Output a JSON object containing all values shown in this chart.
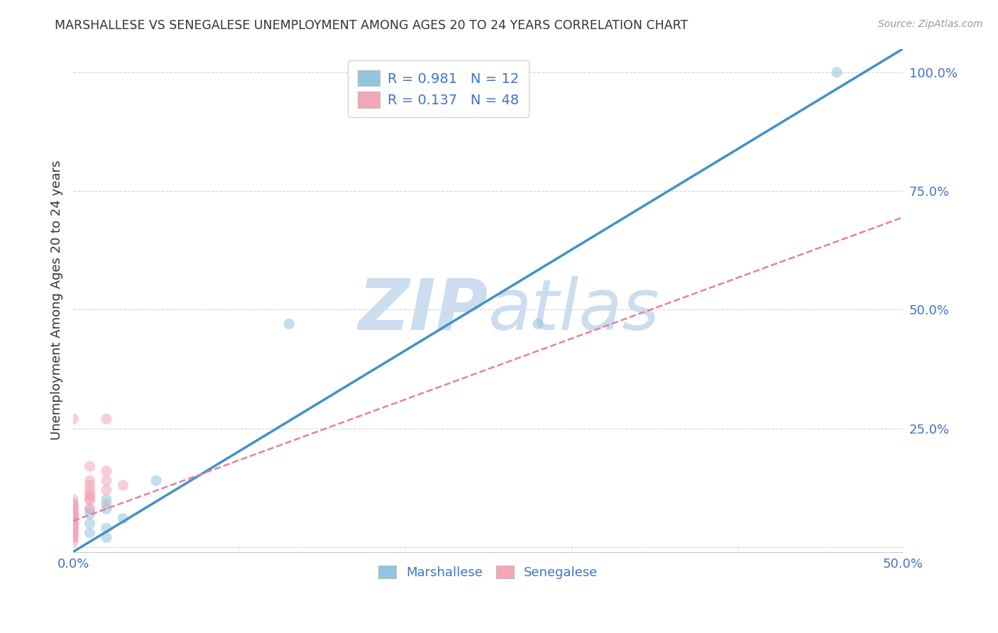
{
  "title": "MARSHALLESE VS SENEGALESE UNEMPLOYMENT AMONG AGES 20 TO 24 YEARS CORRELATION CHART",
  "source": "Source: ZipAtlas.com",
  "ylabel": "Unemployment Among Ages 20 to 24 years",
  "xlim": [
    0.0,
    0.5
  ],
  "ylim": [
    -0.01,
    1.05
  ],
  "xticks": [
    0.0,
    0.5
  ],
  "xtick_labels": [
    "0.0%",
    "50.0%"
  ],
  "yticks": [
    0.25,
    0.5,
    0.75,
    1.0
  ],
  "ytick_labels": [
    "25.0%",
    "50.0%",
    "75.0%",
    "100.0%"
  ],
  "grid_yticks": [
    0.0,
    0.25,
    0.5,
    0.75,
    1.0
  ],
  "marshallese_x": [
    0.46,
    0.13,
    0.02,
    0.05,
    0.02,
    0.02,
    0.01,
    0.03,
    0.01,
    0.01,
    0.28,
    0.02
  ],
  "marshallese_y": [
    1.0,
    0.47,
    0.1,
    0.14,
    0.04,
    0.08,
    0.03,
    0.06,
    0.05,
    0.07,
    0.47,
    0.02
  ],
  "senegalese_x": [
    0.0,
    0.0,
    0.01,
    0.01,
    0.01,
    0.0,
    0.0,
    0.0,
    0.02,
    0.02,
    0.03,
    0.02,
    0.01,
    0.01,
    0.0,
    0.0,
    0.0,
    0.0,
    0.0,
    0.01,
    0.0,
    0.0,
    0.0,
    0.0,
    0.0,
    0.01,
    0.02,
    0.0,
    0.0,
    0.0,
    0.0,
    0.0,
    0.0,
    0.01,
    0.01,
    0.02,
    0.01,
    0.0,
    0.0,
    0.0,
    0.0,
    0.0,
    0.0,
    0.0,
    0.0,
    0.0,
    0.0,
    0.0
  ],
  "senegalese_y": [
    0.07,
    0.06,
    0.17,
    0.14,
    0.11,
    0.09,
    0.08,
    0.1,
    0.14,
    0.16,
    0.13,
    0.09,
    0.08,
    0.12,
    0.07,
    0.05,
    0.06,
    0.04,
    0.08,
    0.1,
    0.03,
    0.05,
    0.07,
    0.06,
    0.04,
    0.13,
    0.27,
    0.27,
    0.08,
    0.06,
    0.05,
    0.07,
    0.09,
    0.11,
    0.1,
    0.12,
    0.08,
    0.06,
    0.04,
    0.05,
    0.07,
    0.03,
    0.02,
    0.04,
    0.01,
    0.02,
    0.03,
    0.05
  ],
  "marshallese_R": "0.981",
  "marshallese_N": "12",
  "senegalese_R": "0.137",
  "senegalese_N": "48",
  "marshallese_color": "#92c5de",
  "senegalese_color": "#f4a6b8",
  "marshallese_line_color": "#4292c6",
  "senegalese_line_color": "#e87fa0",
  "background_color": "#ffffff",
  "grid_color": "#d0d0d0",
  "title_color": "#333333",
  "axis_color": "#4472c4",
  "watermark_color": "#ccddf0",
  "marker_size": 120,
  "marker_alpha": 0.55,
  "blue_line_slope": 2.12,
  "blue_line_intercept": -0.01,
  "pink_line_slope": 1.28,
  "pink_line_intercept": 0.055
}
